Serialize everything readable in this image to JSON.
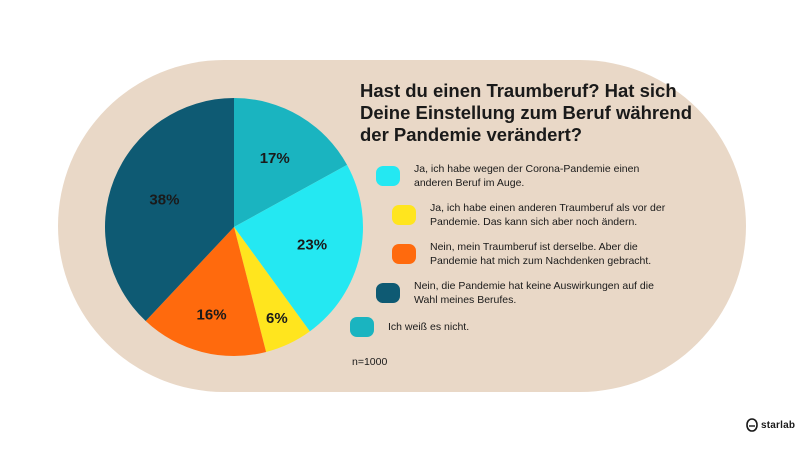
{
  "title": "Hast du einen Traumberuf? Hat sich Deine Einstellung zum Beruf während der Pandemie verändert?",
  "sample": "n=1000",
  "logo": {
    "text": "starlab",
    "icon": "starlab-logo-icon"
  },
  "chart_data": {
    "type": "pie",
    "title": "Hast du einen Traumberuf? Hat sich Deine Einstellung zum Beruf während der Pandemie verändert?",
    "categories": [
      "Ja, ich habe wegen der Corona-Pandemie einen anderen Beruf im Auge.",
      "Ja, ich habe einen anderen Traumberuf als vor der Pandemie. Das kann sich aber noch ändern.",
      "Nein, mein Traumberuf ist derselbe. Aber die Pandemie hat mich zum Nachdenken gebracht.",
      "Nein, die Pandemie hat keine Auswirkungen auf die Wahl meines Berufes.",
      "Ich weiß es nicht."
    ],
    "slices": [
      {
        "label": "Ich weiß es nicht.",
        "value": 17,
        "display": "17%",
        "color": "#1ab4c0"
      },
      {
        "label": "Ja, ich habe wegen der Corona-Pandemie einen anderen Beruf im Auge.",
        "value": 23,
        "display": "23%",
        "color": "#24e8f2"
      },
      {
        "label": "Ja, ich habe einen anderen Traumberuf als vor der Pandemie. Das kann sich aber noch ändern.",
        "value": 6,
        "display": "6%",
        "color": "#ffe51e"
      },
      {
        "label": "Nein, mein Traumberuf ist derselbe. Aber die Pandemie hat mich zum Nachdenken gebracht.",
        "value": 16,
        "display": "16%",
        "color": "#ff6a0d"
      },
      {
        "label": "Nein, die Pandemie hat keine Auswirkungen auf die Wahl meines Berufes.",
        "value": 38,
        "display": "38%",
        "color": "#0e5a73"
      }
    ],
    "legend": [
      {
        "text": "Ja, ich habe wegen der Corona-Pandemie einen anderen Beruf im Auge.",
        "color": "#24e8f2"
      },
      {
        "text": "Ja, ich habe einen anderen Traumberuf als vor der Pandemie. Das kann sich aber noch ändern.",
        "color": "#ffe51e"
      },
      {
        "text": "Nein, mein Traumberuf ist derselbe. Aber die Pandemie hat mich zum Nachdenken gebracht.",
        "color": "#ff6a0d"
      },
      {
        "text": "Nein, die Pandemie hat keine Auswirkungen auf die Wahl meines Berufes.",
        "color": "#0e5a73"
      },
      {
        "text": "Ich weiß es nicht.",
        "color": "#1ab4c0"
      }
    ],
    "legend_placement": "right"
  }
}
